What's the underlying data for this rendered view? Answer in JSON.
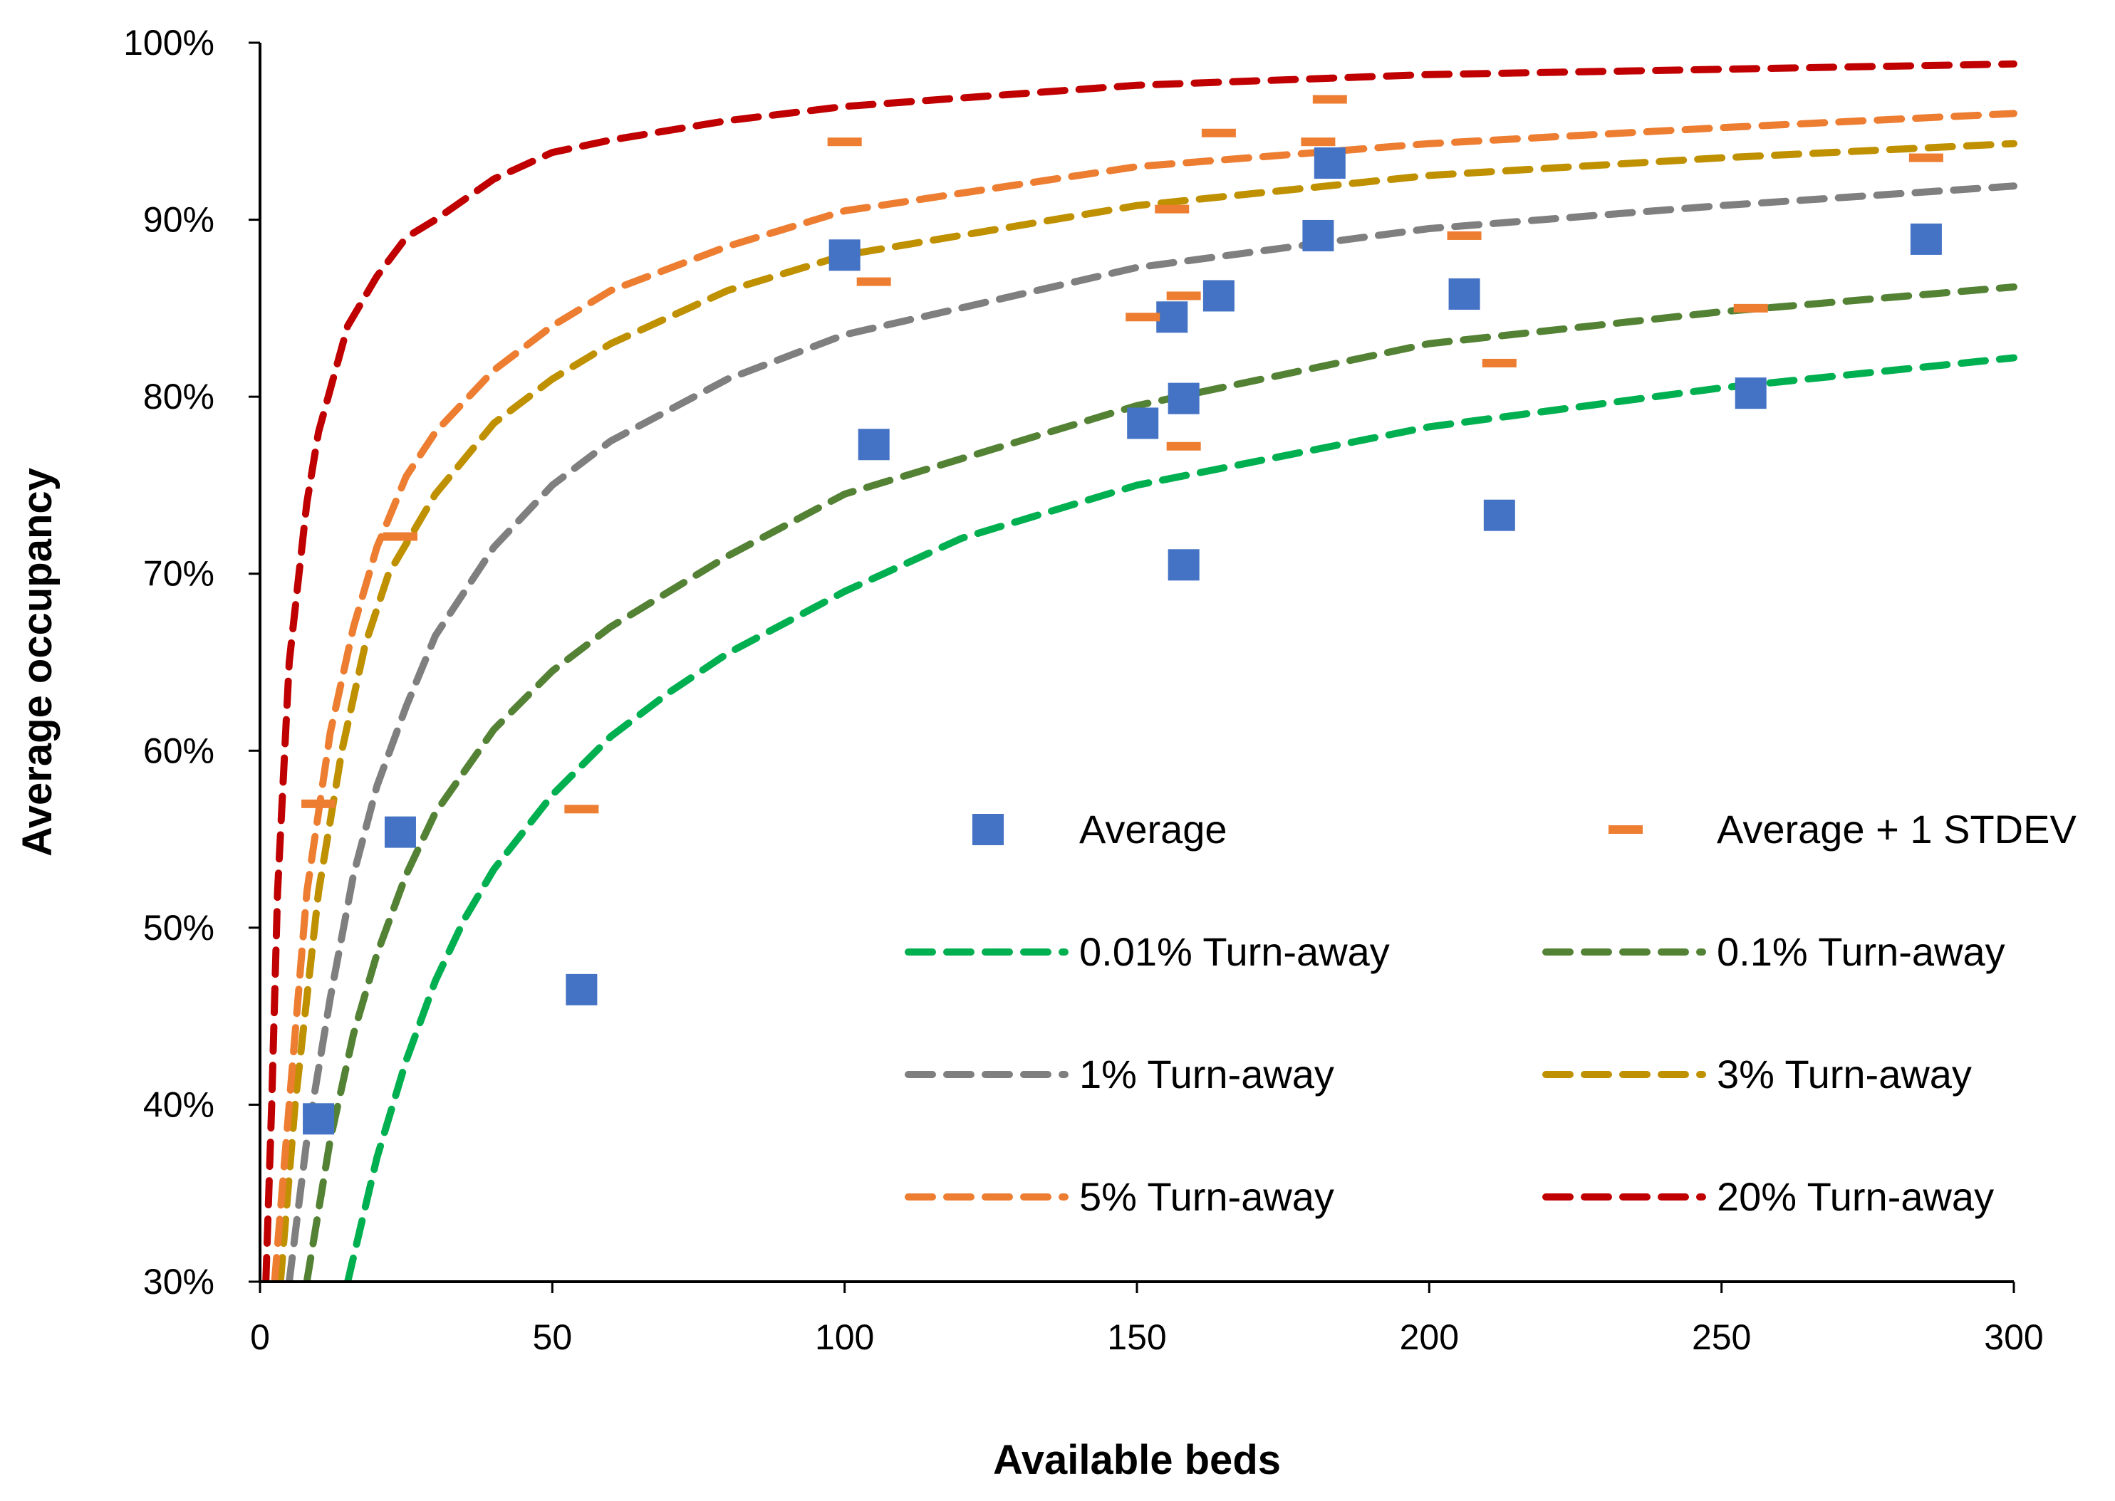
{
  "chart_data": {
    "type": "scatter",
    "xlabel": "Available beds",
    "ylabel": "Average occupancy",
    "xlim": [
      0,
      300
    ],
    "ylim": [
      30,
      100
    ],
    "x_ticks": [
      0,
      50,
      100,
      150,
      200,
      250,
      300
    ],
    "x_tick_labels": [
      "0",
      "50",
      "100",
      "150",
      "200",
      "250",
      "300"
    ],
    "y_ticks": [
      30,
      40,
      50,
      60,
      70,
      80,
      90,
      100
    ],
    "y_tick_labels": [
      "30%",
      "40%",
      "50%",
      "60%",
      "70%",
      "80%",
      "90%",
      "100%"
    ],
    "grid": false,
    "legend_position": "lower-right-inside",
    "series": [
      {
        "name": "Average",
        "kind": "marker-square",
        "color": "#4472C4",
        "points": [
          [
            10,
            39.2
          ],
          [
            24,
            55.4
          ],
          [
            55,
            46.5
          ],
          [
            100,
            88.0
          ],
          [
            105,
            77.3
          ],
          [
            151,
            78.5
          ],
          [
            156,
            84.5
          ],
          [
            158,
            79.9
          ],
          [
            158,
            70.5
          ],
          [
            164,
            85.7
          ],
          [
            181,
            89.1
          ],
          [
            183,
            93.2
          ],
          [
            206,
            85.8
          ],
          [
            212,
            73.3
          ],
          [
            255,
            80.2
          ],
          [
            285,
            88.9
          ]
        ]
      },
      {
        "name": "Average + 1 STDEV",
        "kind": "marker-dash",
        "color": "#ED7D31",
        "points": [
          [
            10,
            57.0
          ],
          [
            24,
            72.1
          ],
          [
            55,
            56.7
          ],
          [
            100,
            94.4
          ],
          [
            105,
            86.5
          ],
          [
            151,
            84.5
          ],
          [
            156,
            90.6
          ],
          [
            158,
            85.7
          ],
          [
            158,
            77.2
          ],
          [
            164,
            94.9
          ],
          [
            181,
            94.4
          ],
          [
            183,
            96.8
          ],
          [
            206,
            89.1
          ],
          [
            212,
            81.9
          ],
          [
            255,
            85.0
          ],
          [
            285,
            93.5
          ]
        ]
      },
      {
        "name": "0.01% Turn-away",
        "kind": "dashed-line",
        "color": "#00B050",
        "points": [
          [
            15,
            30.0
          ],
          [
            20,
            37.0
          ],
          [
            25,
            42.5
          ],
          [
            30,
            47.0
          ],
          [
            35,
            50.5
          ],
          [
            40,
            53.3
          ],
          [
            50,
            57.5
          ],
          [
            60,
            60.8
          ],
          [
            70,
            63.3
          ],
          [
            80,
            65.5
          ],
          [
            100,
            69.0
          ],
          [
            120,
            72.0
          ],
          [
            150,
            75.0
          ],
          [
            200,
            78.3
          ],
          [
            250,
            80.5
          ],
          [
            300,
            82.2
          ]
        ]
      },
      {
        "name": "0.1% Turn-away",
        "kind": "dashed-line",
        "color": "#548235",
        "points": [
          [
            8,
            30.0
          ],
          [
            12,
            38.0
          ],
          [
            16,
            44.0
          ],
          [
            20,
            48.5
          ],
          [
            25,
            53.0
          ],
          [
            30,
            56.5
          ],
          [
            40,
            61.2
          ],
          [
            50,
            64.5
          ],
          [
            60,
            67.0
          ],
          [
            80,
            71.0
          ],
          [
            100,
            74.5
          ],
          [
            150,
            79.5
          ],
          [
            200,
            83.0
          ],
          [
            250,
            84.8
          ],
          [
            300,
            86.2
          ]
        ]
      },
      {
        "name": "1% Turn-away",
        "kind": "dashed-line",
        "color": "#7F7F7F",
        "points": [
          [
            5,
            30.0
          ],
          [
            8,
            38.0
          ],
          [
            12,
            46.0
          ],
          [
            16,
            53.0
          ],
          [
            20,
            58.0
          ],
          [
            25,
            62.5
          ],
          [
            30,
            66.5
          ],
          [
            40,
            71.5
          ],
          [
            50,
            75.0
          ],
          [
            60,
            77.5
          ],
          [
            80,
            81.0
          ],
          [
            100,
            83.5
          ],
          [
            150,
            87.3
          ],
          [
            200,
            89.5
          ],
          [
            250,
            90.8
          ],
          [
            300,
            91.9
          ]
        ]
      },
      {
        "name": "3% Turn-away",
        "kind": "dashed-line",
        "color": "#BF9000",
        "points": [
          [
            3.5,
            30.0
          ],
          [
            6,
            40.0
          ],
          [
            10,
            52.0
          ],
          [
            14,
            60.0
          ],
          [
            18,
            66.0
          ],
          [
            22,
            70.0
          ],
          [
            30,
            74.5
          ],
          [
            40,
            78.5
          ],
          [
            50,
            81.0
          ],
          [
            60,
            83.0
          ],
          [
            80,
            86.0
          ],
          [
            100,
            88.0
          ],
          [
            150,
            90.8
          ],
          [
            200,
            92.5
          ],
          [
            250,
            93.5
          ],
          [
            300,
            94.3
          ]
        ]
      },
      {
        "name": "5% Turn-away",
        "kind": "dashed-line",
        "color": "#ED7D31",
        "points": [
          [
            2.5,
            30.0
          ],
          [
            5,
            40.0
          ],
          [
            8,
            52.0
          ],
          [
            12,
            61.0
          ],
          [
            16,
            67.0
          ],
          [
            20,
            71.5
          ],
          [
            25,
            75.5
          ],
          [
            30,
            78.0
          ],
          [
            40,
            81.5
          ],
          [
            50,
            84.0
          ],
          [
            60,
            86.0
          ],
          [
            80,
            88.5
          ],
          [
            100,
            90.5
          ],
          [
            150,
            93.0
          ],
          [
            200,
            94.3
          ],
          [
            250,
            95.2
          ],
          [
            300,
            96.0
          ]
        ]
      },
      {
        "name": "20% Turn-away",
        "kind": "dashed-line",
        "color": "#C00000",
        "points": [
          [
            1,
            30.0
          ],
          [
            2,
            40.0
          ],
          [
            3,
            52.0
          ],
          [
            5,
            65.0
          ],
          [
            8,
            74.0
          ],
          [
            10,
            78.0
          ],
          [
            15,
            84.0
          ],
          [
            20,
            86.8
          ],
          [
            25,
            89.0
          ],
          [
            30,
            90.0
          ],
          [
            40,
            92.3
          ],
          [
            50,
            93.8
          ],
          [
            60,
            94.5
          ],
          [
            80,
            95.6
          ],
          [
            100,
            96.4
          ],
          [
            150,
            97.6
          ],
          [
            200,
            98.2
          ],
          [
            250,
            98.5
          ],
          [
            300,
            98.8
          ]
        ]
      }
    ]
  }
}
